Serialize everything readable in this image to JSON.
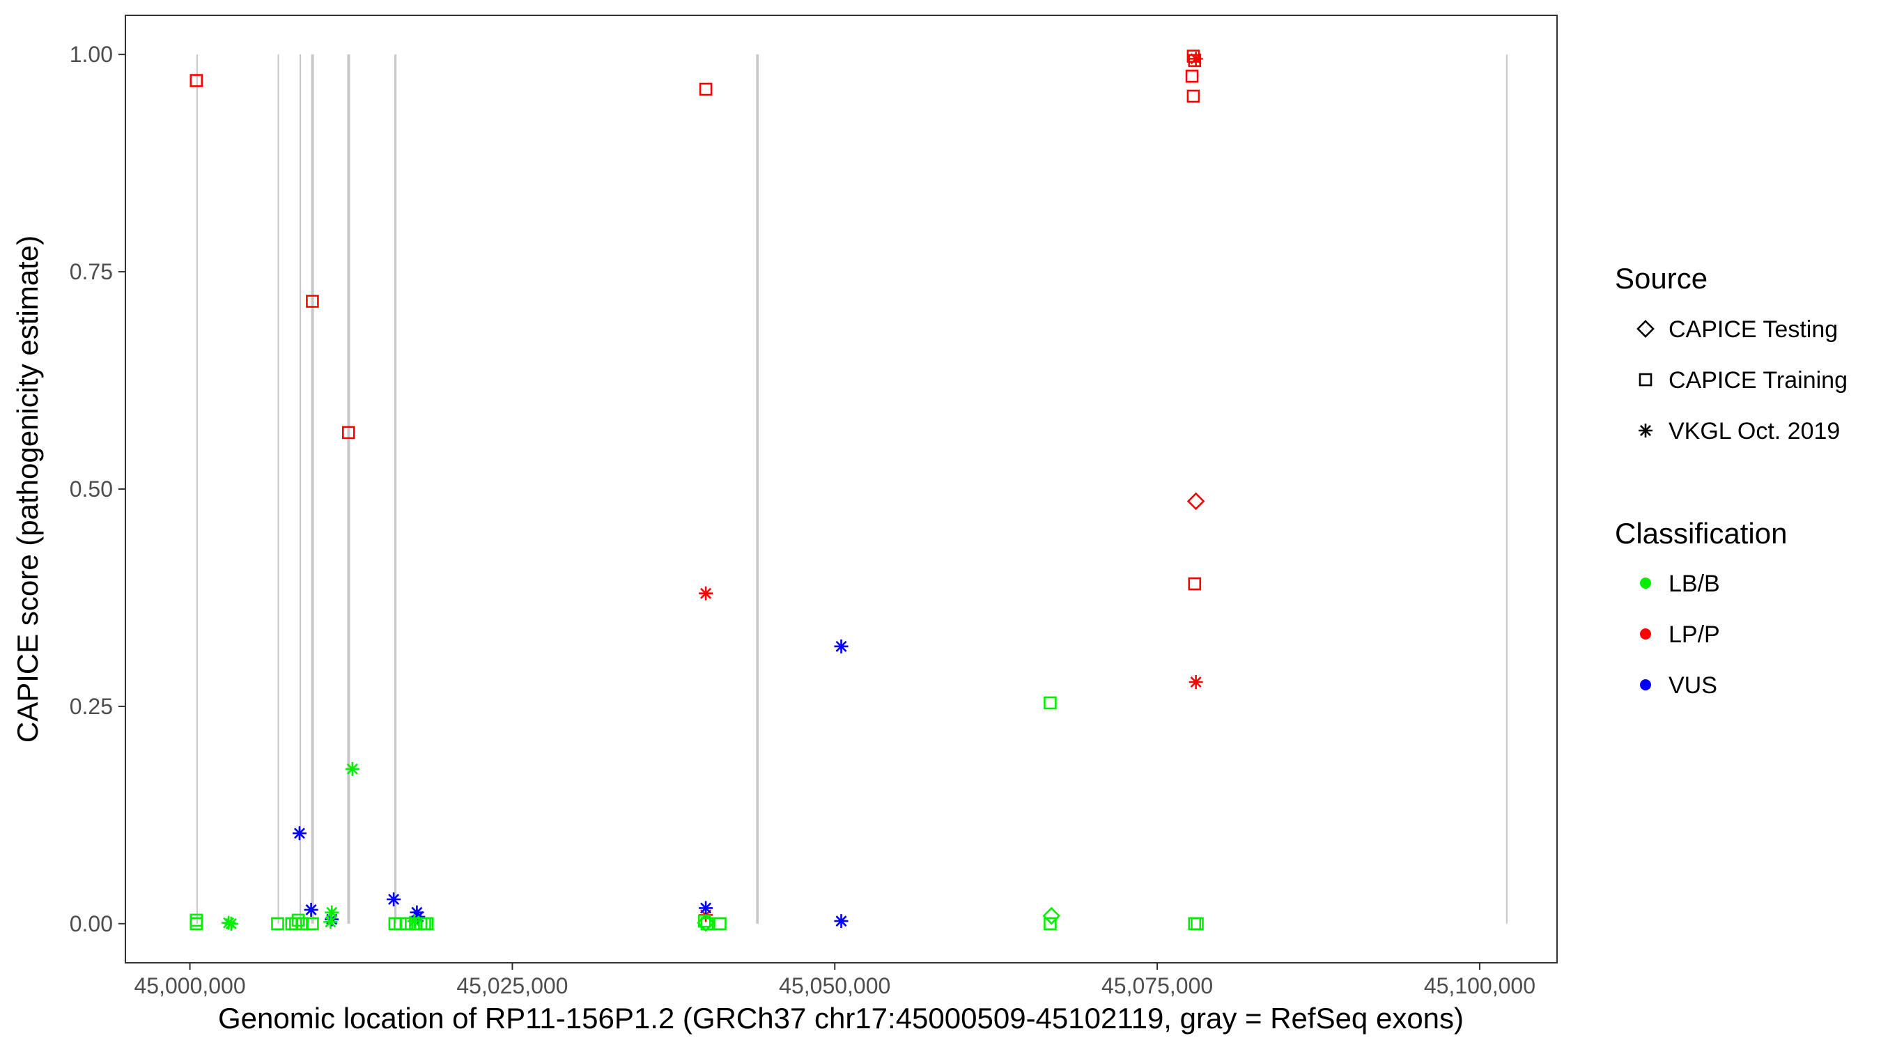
{
  "chart_data": {
    "type": "scatter",
    "xlabel": "Genomic location of RP11-156P1.2 (GRCh37 chr17:45000509-45102119, gray = RefSeq exons)",
    "ylabel": "CAPICE score (pathogenicity estimate)",
    "xlim": [
      44995000,
      45106000
    ],
    "ylim": [
      -0.045,
      1.045
    ],
    "x_ticks": [
      45000000,
      45025000,
      45050000,
      45075000,
      45100000
    ],
    "x_tick_labels": [
      "45,000,000",
      "45,025,000",
      "45,050,000",
      "45,075,000",
      "45,100,000"
    ],
    "y_ticks": [
      0,
      0.25,
      0.5,
      0.75,
      1.0
    ],
    "y_tick_labels": [
      "0.00",
      "0.25",
      "0.50",
      "0.75",
      "1.00"
    ],
    "grid": false,
    "legend_position": "right",
    "exons": [
      {
        "start": 45000509,
        "end": 45000560
      },
      {
        "start": 45006800,
        "end": 45006860
      },
      {
        "start": 45008500,
        "end": 45008620
      },
      {
        "start": 45009400,
        "end": 45009620
      },
      {
        "start": 45012200,
        "end": 45012420
      },
      {
        "start": 45015850,
        "end": 45016020
      },
      {
        "start": 45043900,
        "end": 45044100
      },
      {
        "start": 45102050,
        "end": 45102119
      }
    ],
    "legends": {
      "source": {
        "title": "Source",
        "items": [
          {
            "label": "CAPICE Testing",
            "shape": "diamond"
          },
          {
            "label": "CAPICE Training",
            "shape": "square"
          },
          {
            "label": "VKGL Oct. 2019",
            "shape": "asterisk"
          }
        ]
      },
      "classification": {
        "title": "Classification",
        "items": [
          {
            "label": "LB/B",
            "color": "#00ee00"
          },
          {
            "label": "LP/P",
            "color": "#ff0000"
          },
          {
            "label": "VUS",
            "color": "#0000ff"
          }
        ]
      }
    },
    "series": [
      {
        "source": "CAPICE Training",
        "classification": "LP/P",
        "points": [
          [
            45000500,
            0.97
          ],
          [
            45009500,
            0.716
          ],
          [
            45012300,
            0.565
          ],
          [
            45040000,
            0.96
          ],
          [
            45077800,
            0.998
          ],
          [
            45077900,
            0.993
          ],
          [
            45077700,
            0.975
          ],
          [
            45077800,
            0.952
          ],
          [
            45077900,
            0.391
          ]
        ]
      },
      {
        "source": "CAPICE Testing",
        "classification": "LP/P",
        "points": [
          [
            45078000,
            0.486
          ]
        ]
      },
      {
        "source": "VKGL Oct. 2019",
        "classification": "LP/P",
        "points": [
          [
            45040000,
            0.38
          ],
          [
            45078000,
            0.278
          ],
          [
            45078000,
            0.995
          ],
          [
            45040000,
            0.01
          ]
        ]
      },
      {
        "source": "VKGL Oct. 2019",
        "classification": "VUS",
        "points": [
          [
            45008500,
            0.104
          ],
          [
            45009400,
            0.016
          ],
          [
            45011000,
            0.005
          ],
          [
            45015800,
            0.028
          ],
          [
            45017600,
            0.013
          ],
          [
            45017700,
            0.008
          ],
          [
            45040000,
            0.018
          ],
          [
            45050500,
            0.319
          ],
          [
            45050500,
            0.003
          ]
        ]
      },
      {
        "source": "VKGL Oct. 2019",
        "classification": "LB/B",
        "points": [
          [
            45003000,
            0.001
          ],
          [
            45003200,
            0.0
          ],
          [
            45011000,
            0.013
          ],
          [
            45010900,
            0.002
          ],
          [
            45012600,
            0.178
          ],
          [
            45017400,
            0.003
          ]
        ]
      },
      {
        "source": "CAPICE Training",
        "classification": "LB/B",
        "points": [
          [
            45000500,
            0.004
          ],
          [
            45000500,
            0.0
          ],
          [
            45006800,
            0.0
          ],
          [
            45007900,
            0.0
          ],
          [
            45008200,
            0.0
          ],
          [
            45008400,
            0.004
          ],
          [
            45008700,
            0.0
          ],
          [
            45009500,
            0.0
          ],
          [
            45015900,
            0.0
          ],
          [
            45016300,
            0.0
          ],
          [
            45016800,
            0.0
          ],
          [
            45017500,
            0.0
          ],
          [
            45017900,
            0.0
          ],
          [
            45018200,
            0.0
          ],
          [
            45018400,
            0.0
          ],
          [
            45039900,
            0.003
          ],
          [
            45040100,
            0.0
          ],
          [
            45041100,
            0.0
          ],
          [
            45066700,
            0.254
          ],
          [
            45066700,
            0.0
          ],
          [
            45077900,
            0.0
          ],
          [
            45078100,
            0.0
          ]
        ]
      },
      {
        "source": "CAPICE Testing",
        "classification": "LB/B",
        "points": [
          [
            45066800,
            0.009
          ],
          [
            45040000,
            0.001
          ]
        ]
      }
    ]
  }
}
